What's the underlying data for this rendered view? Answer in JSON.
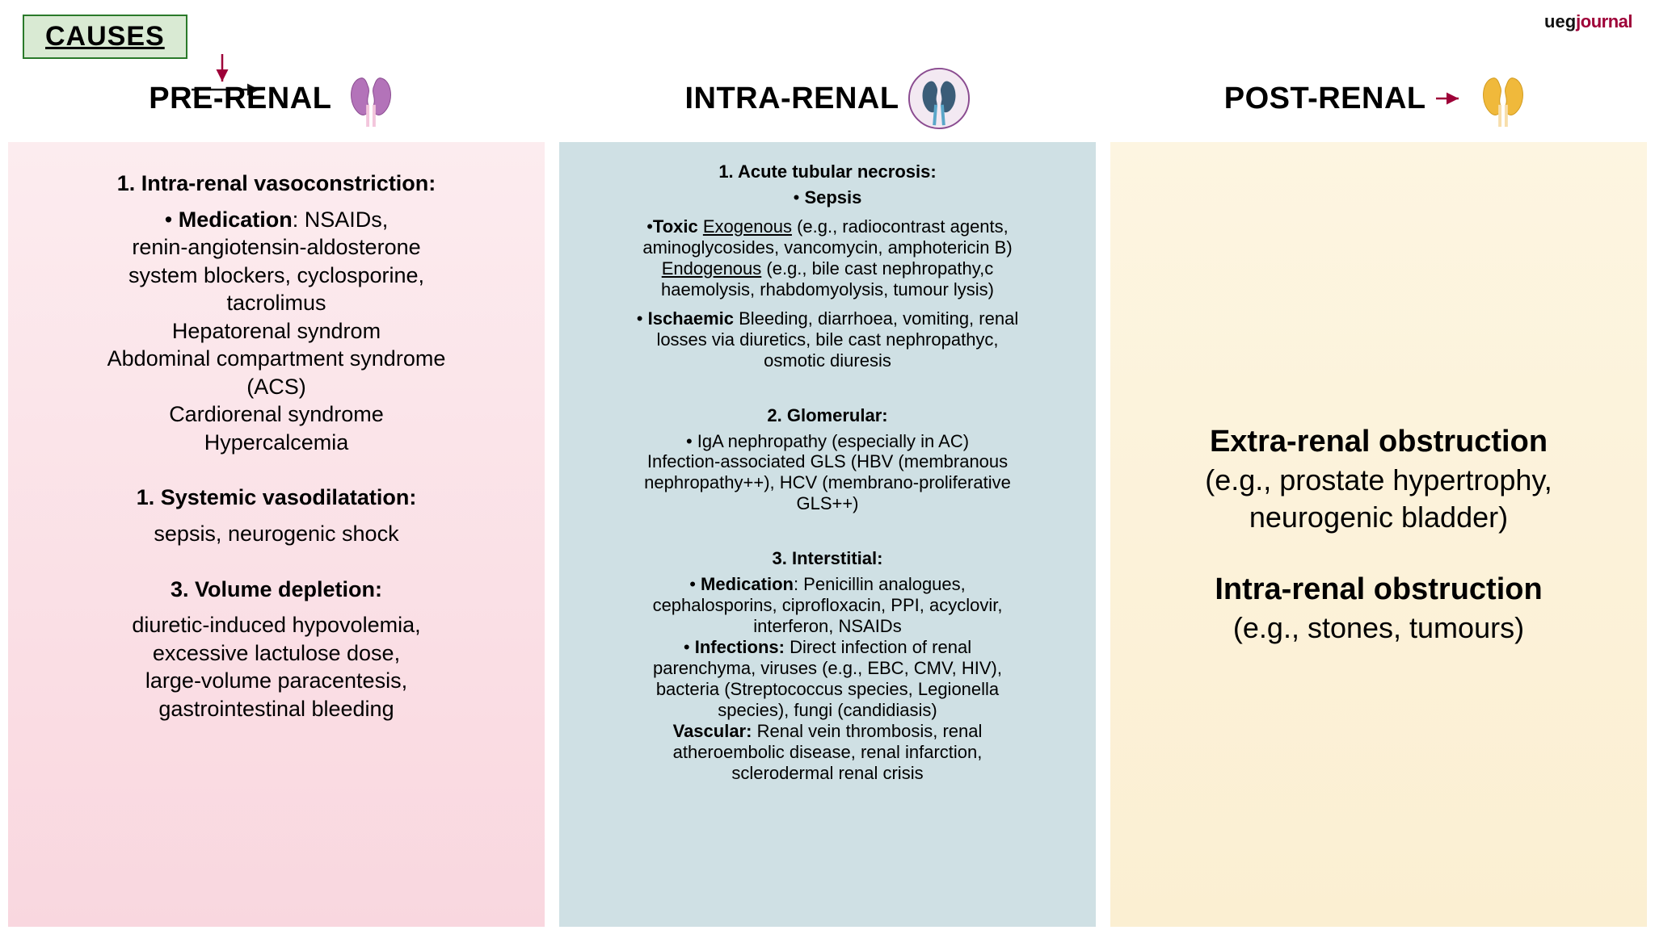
{
  "badge": {
    "text": "CAUSES",
    "bg": "#d9ead3",
    "border": "#2a7a2a"
  },
  "logo": {
    "brand": "ueg",
    "journal": "journal"
  },
  "columns": {
    "pre": {
      "title": "PRE-RENAL",
      "kidney_fill": "#b373b9",
      "kidney_stroke": "#8a4b90",
      "bg_top": "#fcecef",
      "bg_bottom": "#f9d7df",
      "sections": [
        {
          "head": "1. Intra-renal vasoconstriction:",
          "items": [
            [
              "• ",
              [
                "b",
                "Medication"
              ],
              ": NSAIDs,"
            ],
            [
              "renin-angiotensin-aldosterone"
            ],
            [
              "system blockers, cyclosporine,"
            ],
            [
              "tacrolimus"
            ],
            [
              "Hepatorenal syndrom"
            ],
            [
              "Abdominal compartment syndrome"
            ],
            [
              "(ACS)"
            ],
            [
              "Cardiorenal syndrome"
            ],
            [
              "Hypercalcemia"
            ]
          ]
        },
        {
          "head": "1. Systemic vasodilatation:",
          "items": [
            [
              "sepsis, neurogenic shock"
            ]
          ]
        },
        {
          "head": "3. Volume depletion:",
          "items": [
            [
              "diuretic-induced hypovolemia,"
            ],
            [
              "excessive lactulose dose,"
            ],
            [
              "large-volume paracentesis,"
            ],
            [
              "gastrointestinal bleeding"
            ]
          ]
        }
      ]
    },
    "intra": {
      "title": "INTRA-RENAL",
      "kidney_fill": "#3b5d78",
      "kidney_stroke": "#2b4558",
      "icon_circle": true,
      "bg": "#cfe0e4",
      "sections": [
        {
          "head": "1. Acute tubular necrosis:",
          "items": [
            [
              "• ",
              [
                "b",
                "Sepsis"
              ]
            ],
            [
              ""
            ],
            [
              "•",
              [
                "b",
                "Toxic"
              ],
              " ",
              [
                "u",
                "Exogenous"
              ],
              " (e.g., radiocontrast agents,"
            ],
            [
              "aminoglycosides, vancomycin, amphotericin B)"
            ],
            [
              [
                "u",
                "Endogenous"
              ],
              " (e.g., bile cast nephropathy,c"
            ],
            [
              "haemolysis, rhabdomyolysis, tumour lysis)"
            ],
            [
              ""
            ],
            [
              "• ",
              [
                "b",
                "Ischaemic"
              ],
              " Bleeding, diarrhoea, vomiting, renal"
            ],
            [
              "losses via diuretics, bile cast nephropathyc,"
            ],
            [
              "osmotic diuresis"
            ]
          ]
        },
        {
          "head": "2. Glomerular:",
          "items": [
            [
              "• IgA nephropathy (especially in AC)"
            ],
            [
              "Infection-associated GLS (HBV (membranous"
            ],
            [
              "nephropathy++), HCV (membrano-proliferative"
            ],
            [
              "GLS++)"
            ]
          ]
        },
        {
          "head": "3. Interstitial:",
          "items": [
            [
              "• ",
              [
                "b",
                "Medication"
              ],
              ": Penicillin analogues,"
            ],
            [
              "cephalosporins, ciprofloxacin, PPI, acyclovir,"
            ],
            [
              "interferon, NSAIDs"
            ],
            [
              "• ",
              [
                "b",
                "Infections:"
              ],
              " Direct infection of renal"
            ],
            [
              "parenchyma, viruses (e.g., EBC, CMV, HIV),"
            ],
            [
              "bacteria (Streptococcus species, Legionella"
            ],
            [
              "species), fungi (candidiasis)"
            ],
            [
              [
                "b",
                "Vascular:"
              ],
              " Renal vein thrombosis, renal"
            ],
            [
              "atheroembolic disease, renal infarction,"
            ],
            [
              "sclerodermal renal crisis"
            ]
          ]
        }
      ]
    },
    "post": {
      "title": "POST-RENAL",
      "kidney_fill": "#f0b93b",
      "kidney_stroke": "#d19a1e",
      "arrow_color": "#9e0038",
      "bg_top": "#fdf5e1",
      "bg_bottom": "#fbefd2",
      "blocks": [
        {
          "head": "Extra-renal obstruction",
          "sub": "(e.g., prostate hypertrophy, neurogenic bladder)"
        },
        {
          "head": "Intra-renal obstruction",
          "sub": "(e.g., stones, tumours)"
        }
      ]
    }
  },
  "arrows": {
    "pre": {
      "down_color": "#9e0038",
      "right_color": "#1a1a1a"
    }
  },
  "typography": {
    "title_fontsize": 38,
    "pre_fontsize": 27,
    "intra_fontsize": 22,
    "post_fontsize": 36
  }
}
